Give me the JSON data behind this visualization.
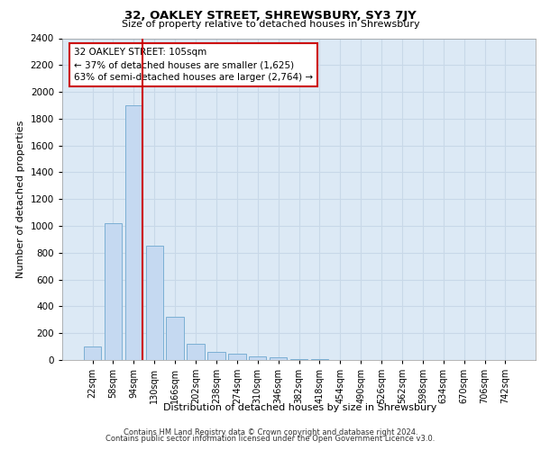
{
  "title": "32, OAKLEY STREET, SHREWSBURY, SY3 7JY",
  "subtitle": "Size of property relative to detached houses in Shrewsbury",
  "xlabel": "Distribution of detached houses by size in Shrewsbury",
  "ylabel": "Number of detached properties",
  "bar_labels": [
    "22sqm",
    "58sqm",
    "94sqm",
    "130sqm",
    "166sqm",
    "202sqm",
    "238sqm",
    "274sqm",
    "310sqm",
    "346sqm",
    "382sqm",
    "418sqm",
    "454sqm",
    "490sqm",
    "526sqm",
    "562sqm",
    "598sqm",
    "634sqm",
    "670sqm",
    "706sqm",
    "742sqm"
  ],
  "bar_values": [
    100,
    1020,
    1900,
    850,
    320,
    120,
    60,
    50,
    30,
    20,
    10,
    5,
    0,
    0,
    0,
    0,
    0,
    0,
    0,
    0,
    0
  ],
  "bar_color": "#C5D9F1",
  "bar_edge_color": "#7BAFD4",
  "vline_color": "#CC0000",
  "annotation_title": "32 OAKLEY STREET: 105sqm",
  "annotation_line1": "← 37% of detached houses are smaller (1,625)",
  "annotation_line2": "63% of semi-detached houses are larger (2,764) →",
  "annotation_box_color": "#CC0000",
  "ylim": [
    0,
    2400
  ],
  "yticks": [
    0,
    200,
    400,
    600,
    800,
    1000,
    1200,
    1400,
    1600,
    1800,
    2000,
    2200,
    2400
  ],
  "grid_color": "#C8D8E8",
  "bg_color": "#DCE9F5",
  "footer1": "Contains HM Land Registry data © Crown copyright and database right 2024.",
  "footer2": "Contains public sector information licensed under the Open Government Licence v3.0."
}
